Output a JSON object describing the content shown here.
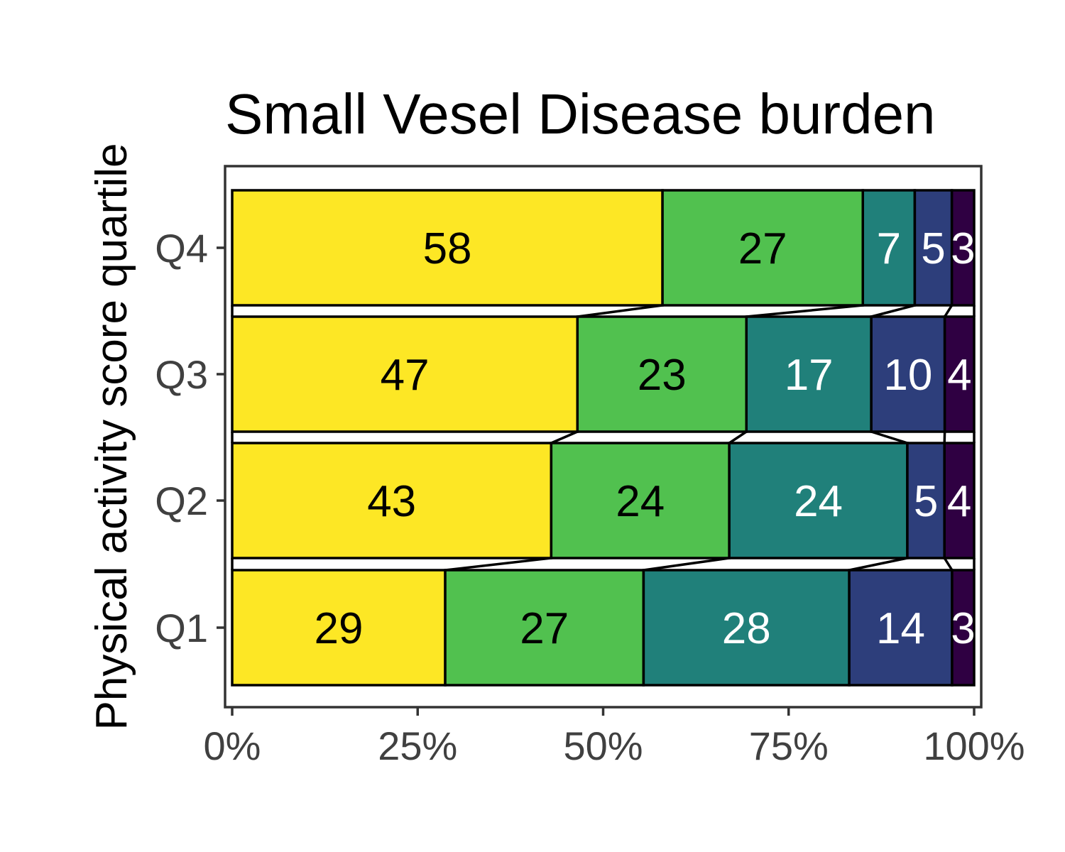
{
  "chart_data": {
    "type": "bar",
    "orientation": "horizontal",
    "stacked": "percent",
    "title": "Small Vesel Disease burden",
    "ylabel": "Physical activity score quartile",
    "xlabel": "",
    "categories": [
      "Q1",
      "Q2",
      "Q3",
      "Q4"
    ],
    "xlim": [
      0,
      100
    ],
    "x_ticks": [
      "0%",
      "25%",
      "50%",
      "75%",
      "100%"
    ],
    "grid": false,
    "legend": "none",
    "connecting_lines": true,
    "series": [
      {
        "values": [
          29,
          43,
          47,
          58
        ],
        "color": "#FDE725",
        "label_color": "#000000"
      },
      {
        "values": [
          27,
          24,
          23,
          27
        ],
        "color": "#51C14F",
        "label_color": "#000000"
      },
      {
        "values": [
          28,
          24,
          17,
          7
        ],
        "color": "#20807A",
        "label_color": "#ffffff"
      },
      {
        "values": [
          14,
          5,
          10,
          5
        ],
        "color": "#2D3E7B",
        "label_color": "#ffffff"
      },
      {
        "values": [
          3,
          4,
          4,
          3
        ],
        "color": "#2F0042",
        "label_color": "#ffffff"
      }
    ]
  }
}
